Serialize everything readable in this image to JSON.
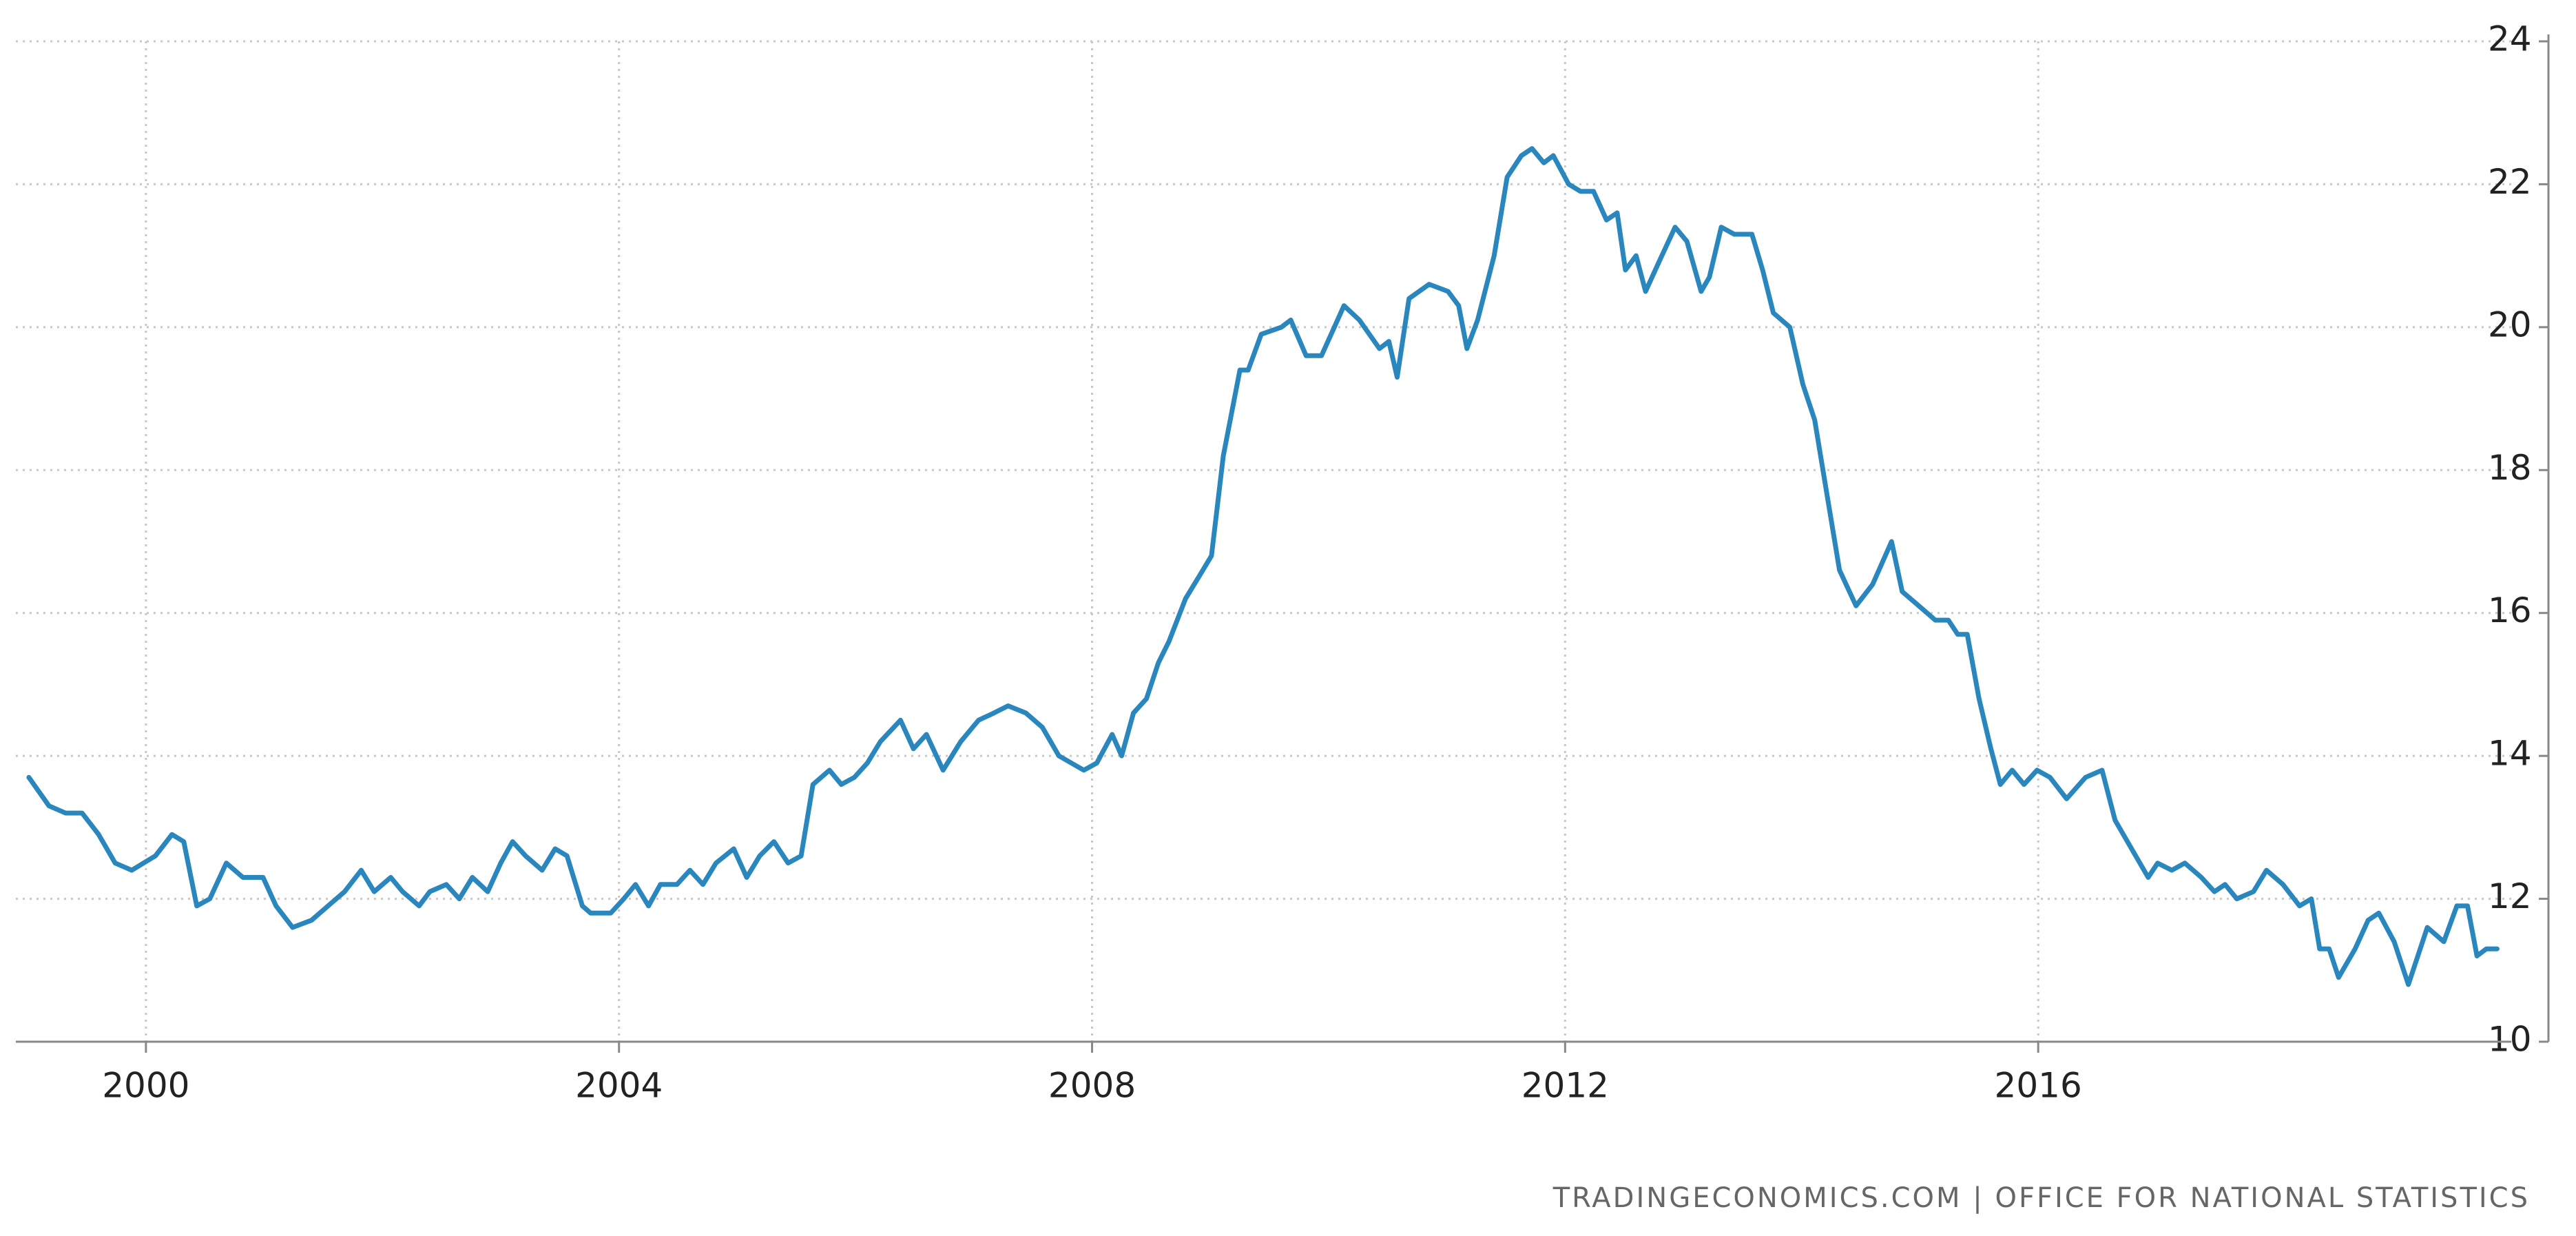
{
  "chart_data": {
    "type": "line",
    "source": "TRADINGECONOMICS.COM | OFFICE FOR NATIONAL STATISTICS",
    "xlim": [
      1998.9,
      2020.0
    ],
    "xticks": [
      2000,
      2004,
      2008,
      2012,
      2016
    ],
    "ylim": [
      10,
      24
    ],
    "yticks": [
      10,
      12,
      14,
      16,
      18,
      20,
      22,
      24
    ],
    "grid": true,
    "y_axis_side": "right",
    "series": [
      {
        "color": "#2a87be",
        "x": [
          1999.01,
          1999.18,
          1999.32,
          1999.46,
          1999.6,
          1999.74,
          1999.88,
          2000.08,
          2000.22,
          2000.32,
          2000.43,
          2000.54,
          2000.68,
          2000.82,
          2000.99,
          2001.1,
          2001.24,
          2001.4,
          2001.54,
          2001.68,
          2001.82,
          2001.93,
          2002.07,
          2002.17,
          2002.31,
          2002.4,
          2002.54,
          2002.65,
          2002.76,
          2002.89,
          2003.0,
          2003.1,
          2003.21,
          2003.35,
          2003.46,
          2003.56,
          2003.69,
          2003.76,
          2003.93,
          2004.04,
          2004.14,
          2004.25,
          2004.35,
          2004.49,
          2004.6,
          2004.71,
          2004.82,
          2004.97,
          2005.08,
          2005.19,
          2005.31,
          2005.43,
          2005.54,
          2005.64,
          2005.78,
          2005.88,
          2005.99,
          2006.1,
          2006.21,
          2006.38,
          2006.49,
          2006.6,
          2006.74,
          2006.89,
          2007.04,
          2007.17,
          2007.29,
          2007.44,
          2007.58,
          2007.72,
          2007.93,
          2008.04,
          2008.17,
          2008.25,
          2008.35,
          2008.46,
          2008.56,
          2008.65,
          2008.79,
          2008.9,
          2009.01,
          2009.11,
          2009.25,
          2009.32,
          2009.43,
          2009.6,
          2009.68,
          2009.81,
          2009.94,
          2010.13,
          2010.26,
          2010.43,
          2010.51,
          2010.58,
          2010.68,
          2010.85,
          2011.01,
          2011.1,
          2011.17,
          2011.26,
          2011.4,
          2011.51,
          2011.63,
          2011.72,
          2011.82,
          2011.9,
          2012.03,
          2012.13,
          2012.24,
          2012.35,
          2012.44,
          2012.51,
          2012.6,
          2012.68,
          2012.79,
          2012.93,
          2013.03,
          2013.15,
          2013.22,
          2013.32,
          2013.43,
          2013.58,
          2013.67,
          2013.76,
          2013.9,
          2014.01,
          2014.11,
          2014.21,
          2014.32,
          2014.46,
          2014.6,
          2014.76,
          2014.85,
          2014.99,
          2015.13,
          2015.24,
          2015.32,
          2015.4,
          2015.5,
          2015.6,
          2015.68,
          2015.78,
          2015.88,
          2015.99,
          2016.1,
          2016.24,
          2016.4,
          2016.54,
          2016.65,
          2016.79,
          2016.93,
          2017.01,
          2017.13,
          2017.24,
          2017.38,
          2017.49,
          2017.58,
          2017.68,
          2017.82,
          2017.93,
          2018.07,
          2018.21,
          2018.31,
          2018.38,
          2018.46,
          2018.54,
          2018.68,
          2018.79,
          2018.88,
          2019.01,
          2019.13,
          2019.21,
          2019.29,
          2019.43,
          2019.54,
          2019.63,
          2019.71,
          2019.79,
          2019.88
        ],
        "values": [
          13.7,
          13.3,
          13.2,
          13.2,
          12.9,
          12.5,
          12.4,
          12.6,
          12.9,
          12.8,
          11.9,
          12.0,
          12.5,
          12.3,
          12.3,
          11.9,
          11.6,
          11.7,
          11.9,
          12.1,
          12.4,
          12.1,
          12.3,
          12.1,
          11.9,
          12.1,
          12.2,
          12.0,
          12.3,
          12.1,
          12.5,
          12.8,
          12.6,
          12.4,
          12.7,
          12.6,
          11.9,
          11.8,
          11.8,
          12.0,
          12.2,
          11.9,
          12.2,
          12.2,
          12.4,
          12.2,
          12.5,
          12.7,
          12.3,
          12.6,
          12.8,
          12.5,
          12.6,
          13.6,
          13.8,
          13.6,
          13.7,
          13.9,
          14.2,
          14.5,
          14.1,
          14.3,
          13.8,
          14.2,
          14.5,
          14.6,
          14.7,
          14.6,
          14.4,
          14.0,
          13.8,
          13.9,
          14.3,
          14.0,
          14.6,
          14.8,
          15.3,
          15.6,
          16.2,
          16.5,
          16.8,
          18.2,
          19.4,
          19.4,
          19.9,
          20.0,
          20.1,
          19.6,
          19.6,
          20.3,
          20.1,
          19.7,
          19.8,
          19.3,
          20.4,
          20.6,
          20.5,
          20.3,
          19.7,
          20.1,
          21.0,
          22.1,
          22.4,
          22.5,
          22.3,
          22.4,
          22.0,
          21.9,
          21.9,
          21.5,
          21.6,
          20.8,
          21.0,
          20.5,
          20.9,
          21.4,
          21.2,
          20.5,
          20.7,
          21.4,
          21.3,
          21.3,
          20.8,
          20.2,
          20.0,
          19.2,
          18.7,
          17.7,
          16.6,
          16.1,
          16.4,
          17.0,
          16.3,
          16.1,
          15.9,
          15.9,
          15.7,
          15.7,
          14.8,
          14.1,
          13.6,
          13.8,
          13.6,
          13.8,
          13.7,
          13.4,
          13.7,
          13.8,
          13.1,
          12.7,
          12.3,
          12.5,
          12.4,
          12.5,
          12.3,
          12.1,
          12.2,
          12.0,
          12.1,
          12.4,
          12.2,
          11.9,
          12.0,
          11.3,
          11.3,
          10.9,
          11.3,
          11.7,
          11.8,
          11.4,
          10.8,
          11.2,
          11.6,
          11.4,
          11.9,
          11.9,
          11.2,
          11.3,
          11.3
        ]
      }
    ]
  }
}
